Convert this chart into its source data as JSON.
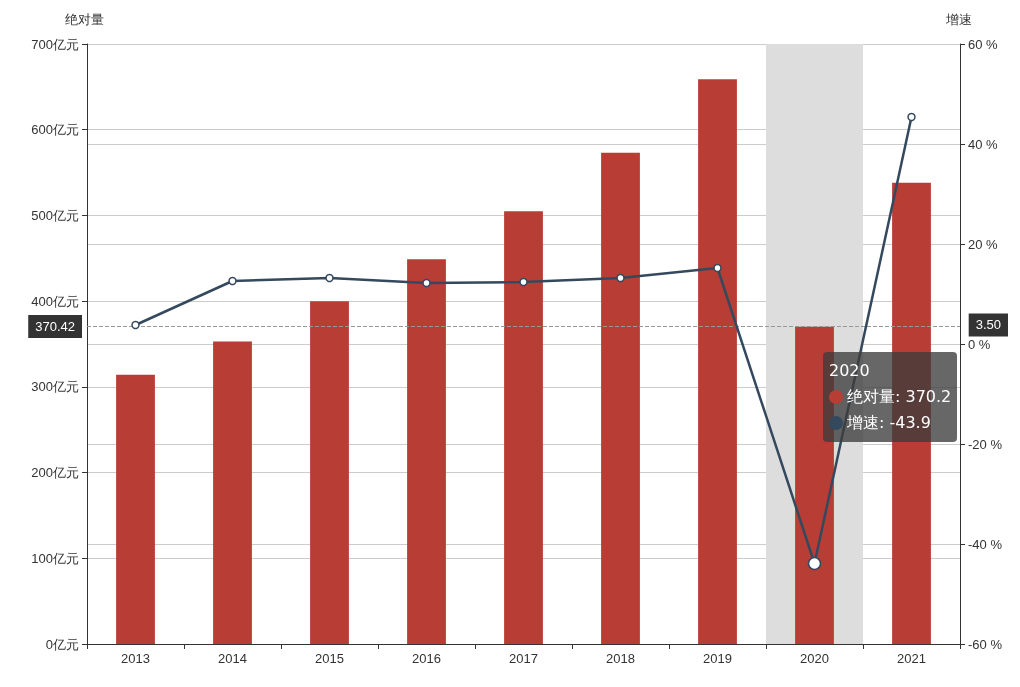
{
  "chart_data": {
    "type": "bar",
    "ylabel": "绝对量",
    "y2label": "增速",
    "categories": [
      "2013",
      "2014",
      "2015",
      "2016",
      "2017",
      "2018",
      "2019",
      "2020",
      "2021"
    ],
    "series": [
      {
        "name": "绝对量",
        "color": "#b83d35",
        "values": [
          314,
          353,
          400,
          449,
          505,
          573,
          659,
          370.2,
          538
        ]
      },
      {
        "name": "增速",
        "type": "line",
        "axis": "y2",
        "color": "#34495e",
        "values": [
          3.8,
          12.6,
          13.2,
          12.2,
          12.4,
          13.2,
          15.2,
          -43.9,
          45.4
        ]
      }
    ],
    "ylim": [
      0,
      700
    ],
    "yticks": [
      {
        "value": 0,
        "label": "0亿元"
      },
      {
        "value": 100,
        "label": "100亿元"
      },
      {
        "value": 200,
        "label": "200亿元"
      },
      {
        "value": 300,
        "label": "300亿元"
      },
      {
        "value": 400,
        "label": "400亿元"
      },
      {
        "value": 500,
        "label": "500亿元"
      },
      {
        "value": 600,
        "label": "600亿元"
      },
      {
        "value": 700,
        "label": "700亿元"
      }
    ],
    "y2lim": [
      -60,
      60
    ],
    "y2ticks": [
      {
        "value": -60,
        "label": "-60 %"
      },
      {
        "value": -40,
        "label": "-40 %"
      },
      {
        "value": -20,
        "label": "-20 %"
      },
      {
        "value": 0,
        "label": "0 %"
      },
      {
        "value": 20,
        "label": "20 %"
      },
      {
        "value": 40,
        "label": "40 %"
      },
      {
        "value": 60,
        "label": "60 %"
      }
    ],
    "ref_lines": [
      {
        "axis": "y",
        "value": 370.42,
        "label": "370.42",
        "color": "#999999",
        "line_style": "dashed"
      }
    ],
    "bands": [
      {
        "axis": "x",
        "from": "2020",
        "to": "2020",
        "color": "#dddddd"
      }
    ],
    "annotations": [
      "2020",
      ": 370.2",
      ": -43.9",
      "3.50"
    ],
    "grid": "y",
    "marker": "circle",
    "line_style": "solid",
    "legend": "right"
  }
}
